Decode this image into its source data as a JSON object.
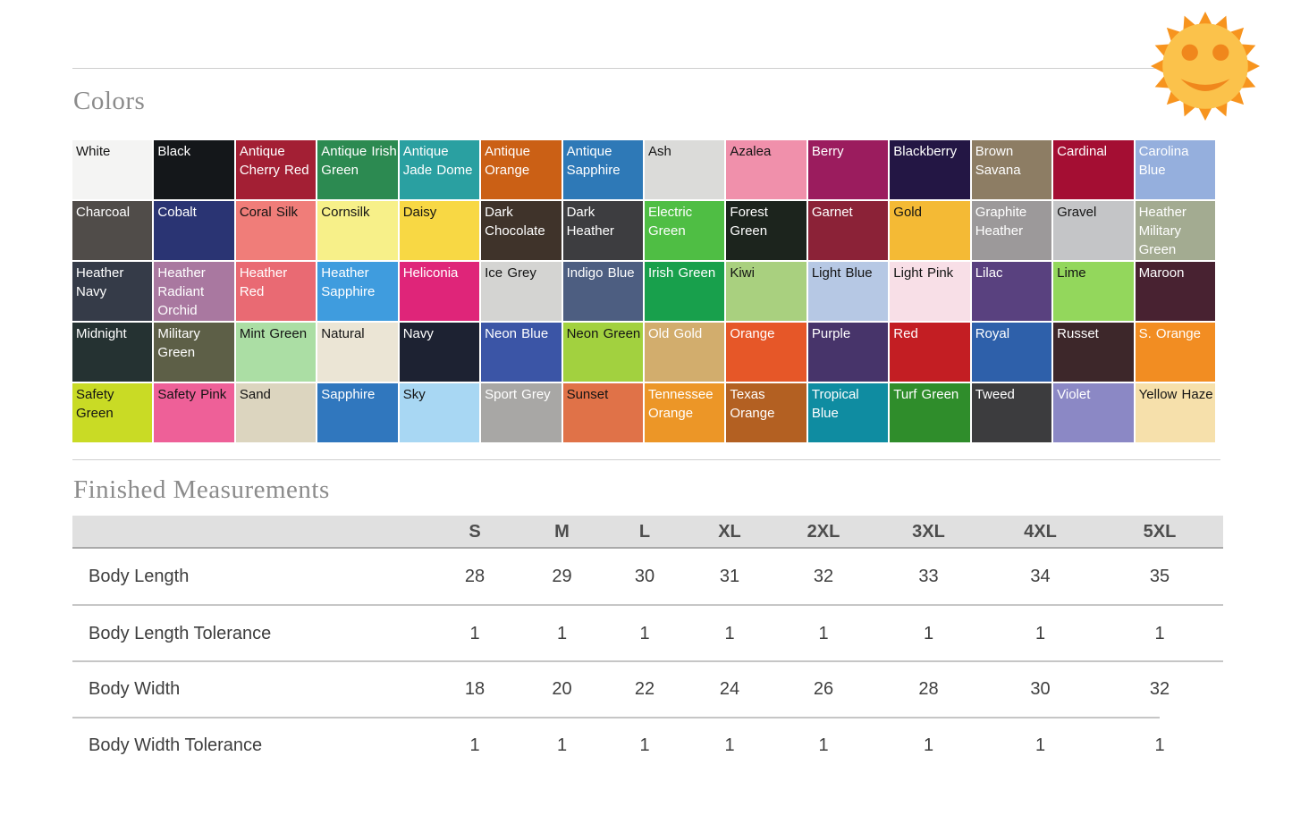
{
  "headings": {
    "colors": "Colors",
    "measurements": "Finished Measurements"
  },
  "icons": {
    "sun_face": {
      "name": "sun-face-icon",
      "ray_color": "#F7941E",
      "face_color": "#FBC24B",
      "feature_color": "#F0871C"
    }
  },
  "colors": [
    {
      "name": "White",
      "hex": "#f4f4f3",
      "text": "dark"
    },
    {
      "name": "Black",
      "hex": "#14171a",
      "text": "light"
    },
    {
      "name": "Antique Cherry Red",
      "hex": "#a31f34",
      "text": "light"
    },
    {
      "name": "Antique Irish Green",
      "hex": "#2c8a51",
      "text": "light"
    },
    {
      "name": "Antique Jade Dome",
      "hex": "#2aa0a1",
      "text": "light"
    },
    {
      "name": "Antique Orange",
      "hex": "#cb6015",
      "text": "light"
    },
    {
      "name": "Antique Sapphire",
      "hex": "#2e79b7",
      "text": "light"
    },
    {
      "name": "Ash",
      "hex": "#dbdbd9",
      "text": "dark"
    },
    {
      "name": "Azalea",
      "hex": "#f090ab",
      "text": "dark"
    },
    {
      "name": "Berry",
      "hex": "#9b1c5e",
      "text": "light"
    },
    {
      "name": "Blackberry",
      "hex": "#231644",
      "text": "light"
    },
    {
      "name": "Brown Savana",
      "hex": "#8d7d64",
      "text": "light"
    },
    {
      "name": "Cardinal",
      "hex": "#a40e33",
      "text": "light"
    },
    {
      "name": "Carolina Blue",
      "hex": "#95afdd",
      "text": "light"
    },
    {
      "name": "Charcoal",
      "hex": "#504c49",
      "text": "light"
    },
    {
      "name": "Cobalt",
      "hex": "#2a3473",
      "text": "light"
    },
    {
      "name": "Coral Silk",
      "hex": "#f07d79",
      "text": "dark"
    },
    {
      "name": "Cornsilk",
      "hex": "#f7f089",
      "text": "dark"
    },
    {
      "name": "Daisy",
      "hex": "#f8d844",
      "text": "dark"
    },
    {
      "name": "Dark Chocolate",
      "hex": "#3f332a",
      "text": "light"
    },
    {
      "name": "Dark Heather",
      "hex": "#3d3d40",
      "text": "light"
    },
    {
      "name": "Electric Green",
      "hex": "#4fbe44",
      "text": "light"
    },
    {
      "name": "Forest Green",
      "hex": "#1c241d",
      "text": "light"
    },
    {
      "name": "Garnet",
      "hex": "#8b2237",
      "text": "light"
    },
    {
      "name": "Gold",
      "hex": "#f4ba35",
      "text": "dark"
    },
    {
      "name": "Graphite Heather",
      "hex": "#9c999a",
      "text": "light"
    },
    {
      "name": "Gravel",
      "hex": "#c4c5c7",
      "text": "dark"
    },
    {
      "name": "Heather Military Green",
      "hex": "#a3ab91",
      "text": "light"
    },
    {
      "name": "Heather Navy",
      "hex": "#353b48",
      "text": "light"
    },
    {
      "name": "Heather Radiant Orchid",
      "hex": "#a978a0",
      "text": "light"
    },
    {
      "name": "Heather Red",
      "hex": "#e96a73",
      "text": "light"
    },
    {
      "name": "Heather Sapphire",
      "hex": "#3f9cde",
      "text": "light"
    },
    {
      "name": "Heliconia",
      "hex": "#df2579",
      "text": "light"
    },
    {
      "name": "Ice Grey",
      "hex": "#d4d4d2",
      "text": "dark"
    },
    {
      "name": "Indigo Blue",
      "hex": "#4d5e81",
      "text": "light"
    },
    {
      "name": "Irish Green",
      "hex": "#18a04c",
      "text": "light"
    },
    {
      "name": "Kiwi",
      "hex": "#a9d07f",
      "text": "dark"
    },
    {
      "name": "Light Blue",
      "hex": "#b6c8e4",
      "text": "dark"
    },
    {
      "name": "Light Pink",
      "hex": "#f8dfe7",
      "text": "dark"
    },
    {
      "name": "Lilac",
      "hex": "#59417f",
      "text": "light"
    },
    {
      "name": "Lime",
      "hex": "#93d75c",
      "text": "dark"
    },
    {
      "name": "Maroon",
      "hex": "#482231",
      "text": "light"
    },
    {
      "name": "Midnight",
      "hex": "#253232",
      "text": "light"
    },
    {
      "name": "Military Green",
      "hex": "#5d5f47",
      "text": "light"
    },
    {
      "name": "Mint Green",
      "hex": "#abdea4",
      "text": "dark"
    },
    {
      "name": "Natural",
      "hex": "#ebe5d5",
      "text": "dark"
    },
    {
      "name": "Navy",
      "hex": "#1d2232",
      "text": "light"
    },
    {
      "name": "Neon Blue",
      "hex": "#3b55a6",
      "text": "light"
    },
    {
      "name": "Neon Green",
      "hex": "#a2d13f",
      "text": "dark"
    },
    {
      "name": "Old Gold",
      "hex": "#d2ad6d",
      "text": "light"
    },
    {
      "name": "Orange",
      "hex": "#e65728",
      "text": "light"
    },
    {
      "name": "Purple",
      "hex": "#47346a",
      "text": "light"
    },
    {
      "name": "Red",
      "hex": "#c31e23",
      "text": "light"
    },
    {
      "name": "Royal",
      "hex": "#2e60aa",
      "text": "light"
    },
    {
      "name": "Russet",
      "hex": "#3d272a",
      "text": "light"
    },
    {
      "name": "S. Orange",
      "hex": "#f28d22",
      "text": "light"
    },
    {
      "name": "Safety Green",
      "hex": "#c9db25",
      "text": "dark"
    },
    {
      "name": "Safety Pink",
      "hex": "#ee6098",
      "text": "dark"
    },
    {
      "name": "Sand",
      "hex": "#dcd5bf",
      "text": "dark"
    },
    {
      "name": "Sapphire",
      "hex": "#3077be",
      "text": "light"
    },
    {
      "name": "Sky",
      "hex": "#a8d7f3",
      "text": "dark"
    },
    {
      "name": "Sport Grey",
      "hex": "#a8a7a5",
      "text": "light"
    },
    {
      "name": "Sunset",
      "hex": "#e07248",
      "text": "dark"
    },
    {
      "name": "Tennessee Orange",
      "hex": "#ec9627",
      "text": "light"
    },
    {
      "name": "Texas Orange",
      "hex": "#b36022",
      "text": "light"
    },
    {
      "name": "Tropical Blue",
      "hex": "#0f8ca1",
      "text": "light"
    },
    {
      "name": "Turf Green",
      "hex": "#2f8d2b",
      "text": "light"
    },
    {
      "name": "Tweed",
      "hex": "#3c3c3e",
      "text": "light"
    },
    {
      "name": "Violet",
      "hex": "#8b88c5",
      "text": "light"
    },
    {
      "name": "Yellow Haze",
      "hex": "#f6e0ab",
      "text": "dark"
    }
  ],
  "measurements": {
    "columns": [
      "S",
      "M",
      "L",
      "XL",
      "2XL",
      "3XL",
      "4XL",
      "5XL"
    ],
    "rows": [
      {
        "label": "Body Length",
        "values": [
          "28",
          "29",
          "30",
          "31",
          "32",
          "33",
          "34",
          "35"
        ]
      },
      {
        "label": "Body Length Tolerance",
        "values": [
          "1",
          "1",
          "1",
          "1",
          "1",
          "1",
          "1",
          "1"
        ]
      },
      {
        "label": "Body Width",
        "values": [
          "18",
          "20",
          "22",
          "24",
          "26",
          "28",
          "30",
          "32"
        ]
      },
      {
        "label": "Body Width Tolerance",
        "values": [
          "1",
          "1",
          "1",
          "1",
          "1",
          "1",
          "1",
          "1"
        ]
      }
    ]
  }
}
